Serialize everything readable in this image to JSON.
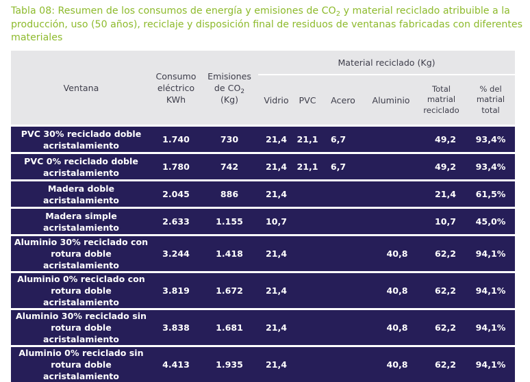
{
  "caption": {
    "part1": "Tabla 08: Resumen de los consumos de energía y emisiones de CO",
    "sub": "2",
    "part2": "  y material reciclado atribuible a la producción, uso (50 años), reciclaje y disposición final de residuos de ventanas fabricadas con diferentes materiales"
  },
  "table": {
    "headers": {
      "ventana": "Ventana",
      "consumo_line1": "Consumo",
      "consumo_line2": "eléctrico",
      "consumo_line3": "KWh",
      "emisiones_line1": "Emisiones",
      "emisiones_line2_pre": "de CO",
      "emisiones_line2_sub": "2",
      "emisiones_line3": "(Kg)",
      "material_reciclado": "Material reciclado (Kg)",
      "vidrio": "Vidrio",
      "pvc": "PVC",
      "acero": "Acero",
      "aluminio": "Aluminio",
      "total_line1": "Total",
      "total_line2": "matrial",
      "total_line3": "reciclado",
      "pct_line1": "% del",
      "pct_line2": "matrial",
      "pct_line3": "total"
    },
    "rows": [
      {
        "ventana": [
          "PVC 30% reciclado doble",
          "acristalamiento"
        ],
        "consumo": "1.740",
        "emisiones": "730",
        "vidrio": "21,4",
        "pvc": "21,1",
        "acero": "6,7",
        "aluminio": "",
        "total": "49,2",
        "pct": "93,4%"
      },
      {
        "ventana": [
          "PVC 0% reciclado doble",
          "acristalamiento"
        ],
        "consumo": "1.780",
        "emisiones": "742",
        "vidrio": "21,4",
        "pvc": "21,1",
        "acero": "6,7",
        "aluminio": "",
        "total": "49,2",
        "pct": "93,4%"
      },
      {
        "ventana": [
          "Madera doble",
          "acristalamiento"
        ],
        "consumo": "2.045",
        "emisiones": "886",
        "vidrio": "21,4",
        "pvc": "",
        "acero": "",
        "aluminio": "",
        "total": "21,4",
        "pct": "61,5%"
      },
      {
        "ventana": [
          "Madera simple",
          "acristalamiento"
        ],
        "consumo": "2.633",
        "emisiones": "1.155",
        "vidrio": "10,7",
        "pvc": "",
        "acero": "",
        "aluminio": "",
        "total": "10,7",
        "pct": "45,0%"
      },
      {
        "ventana": [
          "Aluminio 30% reciclado con",
          "rotura doble acristalamiento"
        ],
        "consumo": "3.244",
        "emisiones": "1.418",
        "vidrio": "21,4",
        "pvc": "",
        "acero": "",
        "aluminio": "40,8",
        "total": "62,2",
        "pct": "94,1%"
      },
      {
        "ventana": [
          "Aluminio 0% reciclado con",
          "rotura doble acristalamiento"
        ],
        "consumo": "3.819",
        "emisiones": "1.672",
        "vidrio": "21,4",
        "pvc": "",
        "acero": "",
        "aluminio": "40,8",
        "total": "62,2",
        "pct": "94,1%"
      },
      {
        "ventana": [
          "Aluminio 30% reciclado sin",
          "rotura doble acristalamiento"
        ],
        "consumo": "3.838",
        "emisiones": "1.681",
        "vidrio": "21,4",
        "pvc": "",
        "acero": "",
        "aluminio": "40,8",
        "total": "62,2",
        "pct": "94,1%"
      },
      {
        "ventana": [
          "Aluminio 0% reciclado sin",
          "rotura doble acristalamiento"
        ],
        "consumo": "4.413",
        "emisiones": "1.935",
        "vidrio": "21,4",
        "pvc": "",
        "acero": "",
        "aluminio": "40,8",
        "total": "62,2",
        "pct": "94,1%"
      }
    ]
  },
  "colors": {
    "caption": "#8dba2c",
    "header_bg": "#e6e6e8",
    "header_text": "#3d3d4a",
    "row_bg": "#261e58",
    "row_text": "#ffffff"
  }
}
